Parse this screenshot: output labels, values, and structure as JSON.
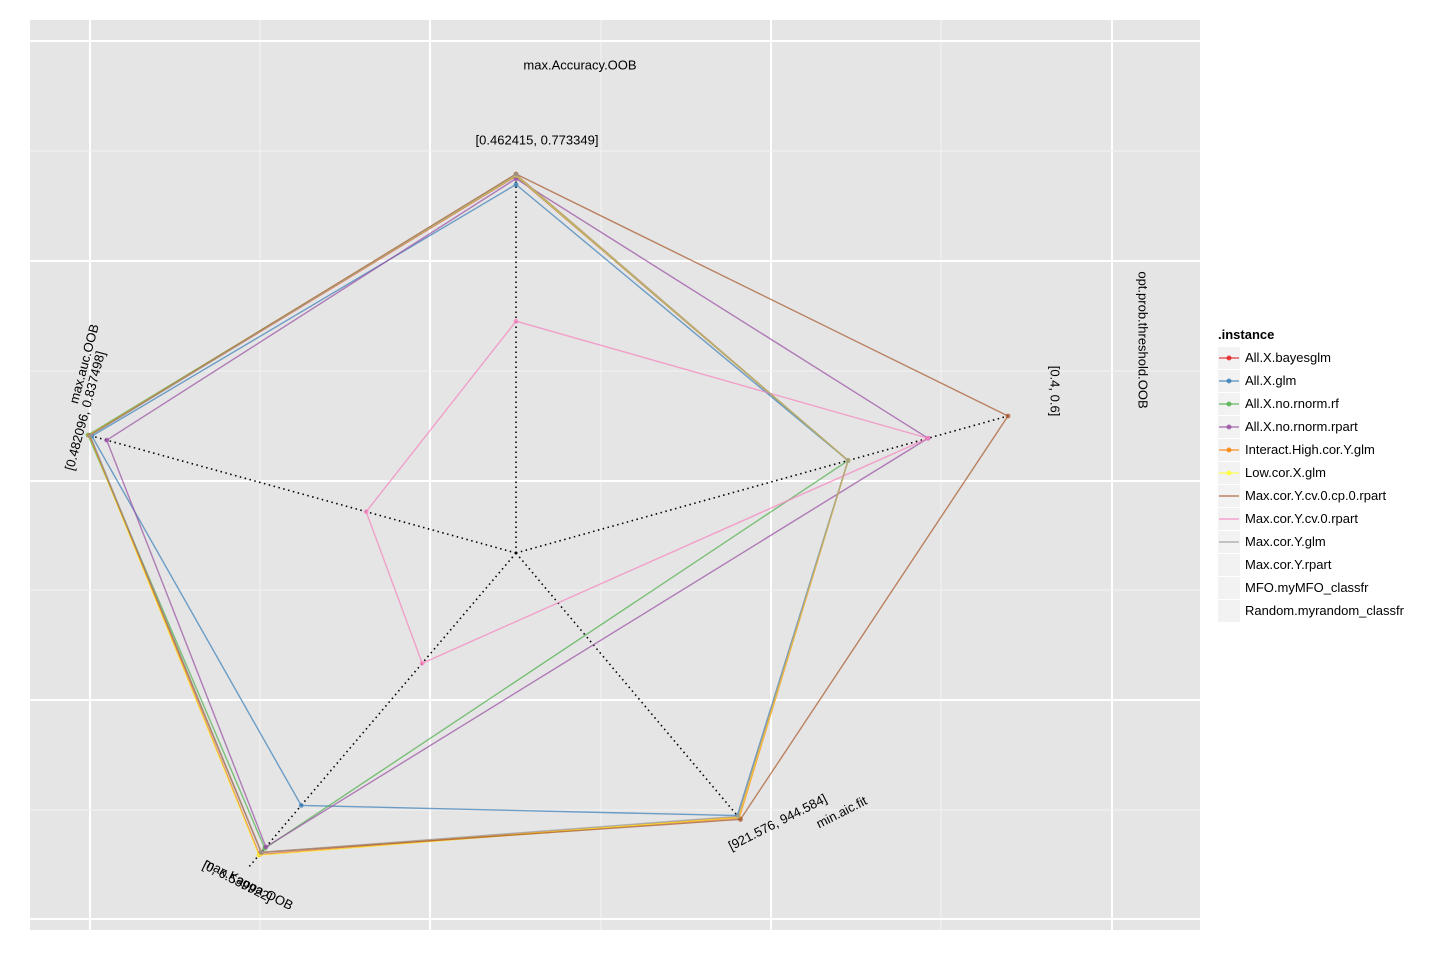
{
  "chart_data": {
    "type": "radar",
    "axes": [
      {
        "name": "max.Accuracy.OOB",
        "range_label": "[0.462415, 0.773349]",
        "min": 0.462415,
        "max": 0.773349
      },
      {
        "name": "opt.prob.threshold.OOB",
        "range_label": "[0.4, 0.6]",
        "min": 0.4,
        "max": 0.6
      },
      {
        "name": "min.aic.fit",
        "range_label": "[921.576, 944.584]",
        "min": 921.576,
        "max": 944.584
      },
      {
        "name": "max.Kappa.OOB",
        "range_label": "[0, 0.539922]",
        "min": 0,
        "max": 0.539922
      },
      {
        "name": "max.auc.OOB",
        "range_label": "[0.482096, 0.837498]",
        "min": 0.482096,
        "max": 0.837498
      }
    ],
    "legend_title": ".instance",
    "legend_position": "right",
    "grid": true,
    "series": [
      {
        "name": "All.X.bayesglm",
        "color": "#e41a1c",
        "marker": "circle",
        "values": [
          0.7707,
          0.5,
          944.2,
          0.505,
          0.8356
        ]
      },
      {
        "name": "All.X.glm",
        "color": "#377eb8",
        "marker": "triangle",
        "values": [
          0.7601,
          0.5,
          944.0,
          0.375,
          0.8325
        ]
      },
      {
        "name": "All.X.no.rnorm.rf",
        "color": "#4daf4a",
        "marker": "square",
        "values": [
          0.7714,
          0.5,
          null,
          0.488,
          0.8375
        ]
      },
      {
        "name": "All.X.no.rnorm.rpart",
        "color": "#984ea3",
        "marker": "plus",
        "values": [
          0.7675,
          0.55,
          null,
          0.4845,
          0.8136
        ]
      },
      {
        "name": "Interact.High.cor.Y.glm",
        "color": "#ff7f00",
        "marker": "boxx",
        "values": [
          0.7729,
          0.5,
          944.3,
          0.4985,
          0.8359
        ]
      },
      {
        "name": "Low.cor.X.glm",
        "color": "#ffff33",
        "marker": "star",
        "values": [
          0.7717,
          0.5,
          944.2,
          0.506,
          0.8359
        ]
      },
      {
        "name": "Max.cor.Y.cv.0.cp.0.rpart",
        "color": "#a65628",
        "marker": "line",
        "values": [
          0.7733,
          0.6,
          944.5,
          0.499,
          0.8356
        ]
      },
      {
        "name": "Max.cor.Y.cv.0.rpart",
        "color": "#f781bf",
        "marker": "line",
        "values": [
          0.5876,
          0.55,
          null,
          0.0,
          0.482096
        ]
      },
      {
        "name": "Max.cor.Y.glm",
        "color": "#999999",
        "marker": "line",
        "values": [
          0.7726,
          0.5,
          944.1,
          0.4985,
          0.8347
        ]
      },
      {
        "name": "Max.cor.Y.rpart",
        "color": null,
        "marker": "none",
        "values": []
      },
      {
        "name": "MFO.myMFO_classfr",
        "color": null,
        "marker": "none",
        "values": []
      },
      {
        "name": "Random.myrandom_classfr",
        "color": null,
        "marker": "none",
        "values": []
      }
    ]
  }
}
